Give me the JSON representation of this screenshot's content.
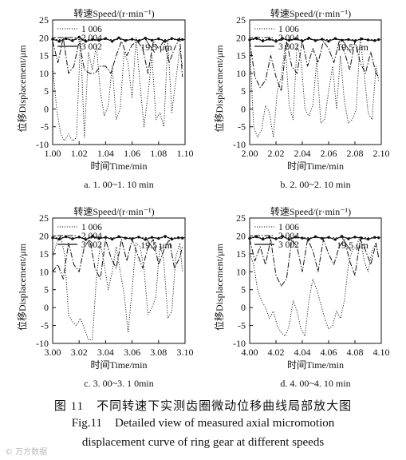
{
  "chart_data": [
    {
      "type": "line",
      "legend_title": "转速Speed/(r·min⁻¹)",
      "legend_position": "top-left",
      "xlabel": "时间Time/min",
      "ylabel": "位移Displacement/μm",
      "xlim": [
        1.0,
        1.1
      ],
      "ylim": [
        -10,
        25
      ],
      "xticks": [
        "1.00",
        "1.02",
        "1.04",
        "1.06",
        "1.08",
        "1.10"
      ],
      "yticks": [
        "-10",
        "-5",
        "0",
        "5",
        "10",
        "15",
        "20",
        "25"
      ],
      "reference_line": {
        "y": 19.5,
        "label": "19.5 μm"
      },
      "subtitle": "a. 1. 00~1. 10 min",
      "grid": false,
      "series": [
        {
          "name": "1 006",
          "style": "dotted",
          "x": [
            1.0,
            1.003,
            1.006,
            1.009,
            1.012,
            1.015,
            1.018,
            1.021,
            1.024,
            1.027,
            1.03,
            1.033,
            1.036,
            1.039,
            1.042,
            1.045,
            1.048,
            1.051,
            1.054,
            1.057,
            1.06,
            1.063,
            1.066,
            1.069,
            1.072,
            1.075,
            1.078,
            1.081,
            1.084,
            1.087,
            1.09,
            1.093,
            1.096,
            1.098
          ],
          "y": [
            12,
            0,
            -7,
            -9,
            -7,
            -9,
            -8,
            20,
            -8,
            16,
            11,
            18,
            5,
            -2,
            1,
            12,
            -3,
            0,
            16,
            13,
            3,
            20,
            7,
            -5,
            4,
            15,
            -3,
            -1,
            -5,
            19,
            -1,
            8,
            17,
            12
          ]
        },
        {
          "name": "2 004",
          "style": "dashdot",
          "x": [
            1.0,
            1.004,
            1.008,
            1.012,
            1.016,
            1.02,
            1.024,
            1.028,
            1.032,
            1.036,
            1.04,
            1.044,
            1.048,
            1.052,
            1.056,
            1.06,
            1.064,
            1.068,
            1.072,
            1.076,
            1.08,
            1.084,
            1.088,
            1.092,
            1.096,
            1.098
          ],
          "y": [
            19,
            13,
            20,
            10,
            12,
            19,
            11,
            10,
            10,
            12,
            12,
            10,
            15,
            19,
            15,
            18,
            19,
            17,
            10,
            19,
            17,
            19,
            13,
            17,
            20,
            9
          ]
        },
        {
          "name": "3 002",
          "style": "solid",
          "x": [
            1.0,
            1.005,
            1.01,
            1.015,
            1.02,
            1.025,
            1.03,
            1.035,
            1.04,
            1.045,
            1.05,
            1.055,
            1.06,
            1.065,
            1.07,
            1.075,
            1.08,
            1.085,
            1.09,
            1.095,
            1.098
          ],
          "y": [
            19.6,
            19.0,
            19.8,
            19.2,
            20.2,
            19.0,
            19.5,
            19.3,
            19.8,
            19.0,
            20.0,
            19.2,
            19.6,
            19.1,
            19.9,
            19.3,
            19.7,
            19.0,
            19.8,
            19.4,
            19.5
          ]
        }
      ]
    },
    {
      "type": "line",
      "legend_title": "转速Speed/(r·min⁻¹)",
      "legend_position": "top-left",
      "xlabel": "时间Time/min",
      "ylabel": "位移Displacement/μm",
      "xlim": [
        2.0,
        2.1
      ],
      "ylim": [
        -10,
        25
      ],
      "xticks": [
        "2.00",
        "2.02",
        "2.04",
        "2.06",
        "2.08",
        "2.10"
      ],
      "yticks": [
        "-10",
        "-5",
        "0",
        "5",
        "10",
        "15",
        "20",
        "25"
      ],
      "reference_line": {
        "y": 19.5,
        "label": "19.5 μm"
      },
      "subtitle": "b. 2. 00~2. 10 min",
      "grid": false,
      "series": [
        {
          "name": "1 006",
          "style": "dotted",
          "x": [
            2.0,
            2.003,
            2.006,
            2.009,
            2.012,
            2.015,
            2.018,
            2.021,
            2.024,
            2.027,
            2.03,
            2.033,
            2.036,
            2.039,
            2.042,
            2.045,
            2.048,
            2.051,
            2.054,
            2.057,
            2.06,
            2.063,
            2.066,
            2.069,
            2.072,
            2.075,
            2.078,
            2.081,
            2.084,
            2.087,
            2.09,
            2.093,
            2.096,
            2.098
          ],
          "y": [
            18,
            -5,
            -8,
            -6,
            1,
            -1,
            -8,
            5,
            9,
            18,
            1,
            -3,
            18,
            14,
            0,
            -2,
            1,
            14,
            -4,
            -3,
            5,
            12,
            0,
            15,
            2,
            -4,
            -3,
            0,
            20,
            10,
            -1,
            -3,
            12,
            8
          ]
        },
        {
          "name": "2 004",
          "style": "dashdot",
          "x": [
            2.0,
            2.004,
            2.008,
            2.012,
            2.016,
            2.02,
            2.024,
            2.028,
            2.032,
            2.036,
            2.04,
            2.044,
            2.048,
            2.052,
            2.056,
            2.06,
            2.064,
            2.068,
            2.072,
            2.076,
            2.08,
            2.084,
            2.088,
            2.092,
            2.096,
            2.098
          ],
          "y": [
            19,
            9,
            6,
            8,
            15,
            9,
            5,
            19,
            12,
            10,
            19,
            12,
            17,
            13,
            19,
            17,
            13,
            19,
            16,
            11,
            19,
            13,
            10,
            16,
            10,
            9
          ]
        },
        {
          "name": "3 002",
          "style": "solid",
          "x": [
            2.0,
            2.005,
            2.01,
            2.015,
            2.02,
            2.025,
            2.03,
            2.035,
            2.04,
            2.045,
            2.05,
            2.055,
            2.06,
            2.065,
            2.07,
            2.075,
            2.08,
            2.085,
            2.09,
            2.095,
            2.098
          ],
          "y": [
            19.4,
            19.9,
            19.1,
            19.6,
            19.0,
            19.8,
            19.3,
            19.7,
            19.1,
            19.9,
            19.2,
            19.6,
            19.0,
            19.8,
            19.3,
            19.5,
            19.1,
            19.7,
            19.4,
            19.2,
            19.5
          ]
        }
      ]
    },
    {
      "type": "line",
      "legend_title": "转速Speed/(r·min⁻¹)",
      "legend_position": "top-left",
      "xlabel": "时间Time/min",
      "ylabel": "位移Displacement/μm",
      "xlim": [
        3.0,
        3.1
      ],
      "ylim": [
        -10,
        25
      ],
      "xticks": [
        "3.00",
        "3.02",
        "3.04",
        "3.06",
        "3.08",
        "3.10"
      ],
      "yticks": [
        "-10",
        "-5",
        "0",
        "5",
        "10",
        "15",
        "20",
        "25"
      ],
      "reference_line": {
        "y": 19.5,
        "label": "19.5 μm"
      },
      "subtitle": "c. 3. 00~3. 1 0min",
      "grid": false,
      "series": [
        {
          "name": "1 006",
          "style": "dotted",
          "x": [
            3.0,
            3.003,
            3.006,
            3.009,
            3.012,
            3.015,
            3.018,
            3.021,
            3.024,
            3.027,
            3.03,
            3.033,
            3.036,
            3.039,
            3.042,
            3.045,
            3.048,
            3.051,
            3.054,
            3.057,
            3.06,
            3.063,
            3.066,
            3.069,
            3.072,
            3.075,
            3.078,
            3.081,
            3.084,
            3.087,
            3.09,
            3.093,
            3.096,
            3.098
          ],
          "y": [
            14,
            18,
            20,
            15,
            -2,
            -4,
            -5,
            -3,
            -6,
            -9,
            -9,
            8,
            18,
            12,
            5,
            10,
            17,
            10,
            4,
            -7,
            5,
            18,
            17,
            11,
            -2,
            0,
            3,
            18,
            13,
            -3,
            -1,
            14,
            18,
            10
          ]
        },
        {
          "name": "2 004",
          "style": "dashdot",
          "x": [
            3.0,
            3.004,
            3.008,
            3.012,
            3.016,
            3.02,
            3.024,
            3.028,
            3.032,
            3.036,
            3.04,
            3.044,
            3.048,
            3.052,
            3.056,
            3.06,
            3.064,
            3.068,
            3.072,
            3.076,
            3.08,
            3.084,
            3.088,
            3.092,
            3.096,
            3.098
          ],
          "y": [
            10,
            12,
            8,
            18,
            12,
            10,
            17,
            19,
            11,
            8,
            19,
            14,
            11,
            19,
            13,
            19,
            15,
            11,
            17,
            19,
            12,
            16,
            19,
            11,
            14,
            17
          ]
        },
        {
          "name": "3 002",
          "style": "solid",
          "x": [
            3.0,
            3.005,
            3.01,
            3.015,
            3.02,
            3.025,
            3.03,
            3.035,
            3.04,
            3.045,
            3.05,
            3.055,
            3.06,
            3.065,
            3.07,
            3.075,
            3.08,
            3.085,
            3.09,
            3.095,
            3.098
          ],
          "y": [
            19.5,
            19.1,
            19.8,
            19.2,
            19.7,
            19.0,
            19.9,
            19.3,
            19.6,
            19.1,
            19.8,
            19.4,
            19.2,
            19.7,
            19.0,
            19.6,
            19.3,
            19.9,
            19.1,
            19.5,
            19.4
          ]
        }
      ]
    },
    {
      "type": "line",
      "legend_title": "转速Speed/(r·min⁻¹)",
      "legend_position": "top-left",
      "xlabel": "时间Time/min",
      "ylabel": "位移Displacement/μm",
      "xlim": [
        4.0,
        4.1
      ],
      "ylim": [
        -10,
        25
      ],
      "xticks": [
        "4.00",
        "4.02",
        "4.04",
        "4.06",
        "4.08",
        "4.10"
      ],
      "yticks": [
        "-10",
        "-5",
        "0",
        "5",
        "10",
        "15",
        "20",
        "25"
      ],
      "reference_line": {
        "y": 19.5,
        "label": "19.5 μm"
      },
      "subtitle": "d. 4. 00~4. 10 min",
      "grid": false,
      "series": [
        {
          "name": "1 006",
          "style": "dotted",
          "x": [
            4.0,
            4.003,
            4.006,
            4.009,
            4.012,
            4.015,
            4.018,
            4.021,
            4.024,
            4.027,
            4.03,
            4.033,
            4.036,
            4.039,
            4.042,
            4.045,
            4.048,
            4.051,
            4.054,
            4.057,
            4.06,
            4.063,
            4.066,
            4.069,
            4.072,
            4.075,
            4.078,
            4.081,
            4.084,
            4.087,
            4.09,
            4.093,
            4.096,
            4.098
          ],
          "y": [
            15,
            12,
            5,
            2,
            0,
            -3,
            -1,
            -5,
            -7,
            -8,
            -5,
            2,
            -1,
            -6,
            -8,
            2,
            8,
            5,
            1,
            -3,
            -6,
            -5,
            -1,
            -3,
            2,
            12,
            16,
            17,
            20,
            13,
            10,
            16,
            18,
            14
          ]
        },
        {
          "name": "2 004",
          "style": "dashdot",
          "x": [
            4.0,
            4.004,
            4.008,
            4.012,
            4.016,
            4.02,
            4.024,
            4.028,
            4.032,
            4.036,
            4.04,
            4.044,
            4.048,
            4.052,
            4.056,
            4.06,
            4.064,
            4.068,
            4.072,
            4.076,
            4.08,
            4.084,
            4.088,
            4.092,
            4.096,
            4.098
          ],
          "y": [
            19,
            13,
            17,
            12,
            19,
            9,
            6,
            8,
            19,
            17,
            10,
            19,
            16,
            10,
            19,
            15,
            12,
            17,
            19,
            13,
            9,
            19,
            16,
            12,
            18,
            14
          ]
        },
        {
          "name": "3 002",
          "style": "solid",
          "x": [
            4.0,
            4.005,
            4.01,
            4.015,
            4.02,
            4.025,
            4.03,
            4.035,
            4.04,
            4.045,
            4.05,
            4.055,
            4.06,
            4.065,
            4.07,
            4.075,
            4.08,
            4.085,
            4.09,
            4.095,
            4.098
          ],
          "y": [
            19.3,
            19.8,
            19.1,
            19.6,
            19.2,
            19.9,
            19.0,
            19.7,
            19.4,
            19.1,
            19.8,
            19.3,
            19.6,
            19.0,
            19.9,
            19.2,
            19.7,
            19.4,
            19.1,
            19.6,
            19.5
          ]
        }
      ]
    }
  ],
  "caption": {
    "zh": "图 11　不同转速下实测齿圈微动位移曲线局部放大图",
    "en_num": "Fig.11",
    "en_line1": "Detailed view of measured axial micromotion",
    "en_line2": "displacement curve of ring gear at different speeds"
  },
  "watermark": "© 万方数据"
}
